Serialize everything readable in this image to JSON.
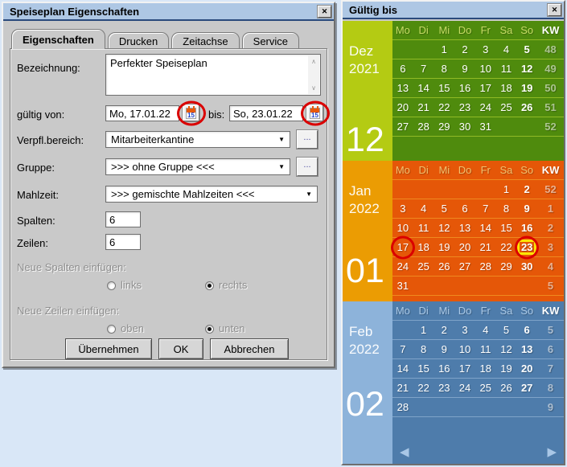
{
  "colors": {
    "page_background": "#d9e7f7",
    "titlebar": "#aec7e4",
    "dialog_face": "#c9c9c9",
    "annotation_red": "#da0000",
    "selection_yellow": "#fce603"
  },
  "icons": {
    "close": "✕",
    "dropdown_arrow": "▼",
    "dots": "...",
    "scroll_up": "∧",
    "scroll_down": "∨",
    "calendar_day_number": "15"
  },
  "dialog": {
    "title": "Speiseplan Eigenschaften",
    "tabs": [
      {
        "label": "Eigenschaften",
        "active": true
      },
      {
        "label": "Drucken",
        "active": false
      },
      {
        "label": "Zeitachse",
        "active": false
      },
      {
        "label": "Service",
        "active": false
      }
    ],
    "fields": {
      "bezeichnung_label": "Bezeichnung:",
      "bezeichnung_value": "Perfekter Speiseplan",
      "gueltig_von_label": "gültig von:",
      "gueltig_von_value": "Mo, 17.01.22",
      "bis_label": "bis:",
      "bis_value": "So, 23.01.22",
      "verpfl_label": "Verpfl.bereich:",
      "verpfl_value": "Mitarbeiterkantine",
      "gruppe_label": "Gruppe:",
      "gruppe_value": ">>> ohne Gruppe <<<",
      "mahlzeit_label": "Mahlzeit:",
      "mahlzeit_value": ">>> gemischte Mahlzeiten <<<",
      "spalten_label": "Spalten:",
      "spalten_value": "6",
      "zeilen_label": "Zeilen:",
      "zeilen_value": "6"
    },
    "radio_groups": {
      "spalten": {
        "label": "Neue Spalten einfügen:",
        "options": [
          {
            "label": "links",
            "selected": false
          },
          {
            "label": "rechts",
            "selected": true
          }
        ]
      },
      "zeilen": {
        "label": "Neue Zeilen einfügen:",
        "options": [
          {
            "label": "oben",
            "selected": false
          },
          {
            "label": "unten",
            "selected": true
          }
        ]
      }
    },
    "buttons": {
      "uebernehmen": "Übernehmen",
      "ok": "OK",
      "abbrechen": "Abbrechen"
    }
  },
  "calendar_window": {
    "title": "Gültig bis",
    "day_headers": [
      "Mo",
      "Di",
      "Mi",
      "Do",
      "Fr",
      "Sa",
      "So",
      "KW"
    ],
    "nav_prev": "◀",
    "nav_next": "▶",
    "months": [
      {
        "key": "dez",
        "name": "Dez",
        "year": "2021",
        "big": "12",
        "sidebar_color": "#b4cb13",
        "main_color": "#4f8b0d",
        "separator_color": "#90ba25",
        "header_color": "#c6db65",
        "weeks": [
          {
            "days": [
              "",
              "",
              "1",
              "2",
              "3",
              "4",
              "5"
            ],
            "kw": "48"
          },
          {
            "days": [
              "6",
              "7",
              "8",
              "9",
              "10",
              "11",
              "12"
            ],
            "kw": "49"
          },
          {
            "days": [
              "13",
              "14",
              "15",
              "16",
              "17",
              "18",
              "19"
            ],
            "kw": "50"
          },
          {
            "days": [
              "20",
              "21",
              "22",
              "23",
              "24",
              "25",
              "26"
            ],
            "kw": "51"
          },
          {
            "days": [
              "27",
              "28",
              "29",
              "30",
              "31",
              "",
              ""
            ],
            "kw": "52"
          }
        ]
      },
      {
        "key": "jan",
        "name": "Jan",
        "year": "2022",
        "big": "01",
        "sidebar_color": "#eb9c03",
        "main_color": "#e55708",
        "separator_color": "#ef8a1f",
        "header_color": "#f3c06d",
        "circled": [
          "17",
          "23"
        ],
        "selected": "23",
        "weeks": [
          {
            "days": [
              "",
              "",
              "",
              "",
              "",
              "1",
              "2"
            ],
            "kw": "52"
          },
          {
            "days": [
              "3",
              "4",
              "5",
              "6",
              "7",
              "8",
              "9"
            ],
            "kw": "1"
          },
          {
            "days": [
              "10",
              "11",
              "12",
              "13",
              "14",
              "15",
              "16"
            ],
            "kw": "2"
          },
          {
            "days": [
              "17",
              "18",
              "19",
              "20",
              "21",
              "22",
              "23"
            ],
            "kw": "3"
          },
          {
            "days": [
              "24",
              "25",
              "26",
              "27",
              "28",
              "29",
              "30"
            ],
            "kw": "4"
          },
          {
            "days": [
              "31",
              "",
              "",
              "",
              "",
              "",
              ""
            ],
            "kw": "5"
          }
        ]
      },
      {
        "key": "feb",
        "name": "Feb",
        "year": "2022",
        "big": "02",
        "sidebar_color": "#8db3da",
        "main_color": "#4e7cab",
        "separator_color": "#7fa3c9",
        "header_color": "#aac9e7",
        "nav": true,
        "weeks": [
          {
            "days": [
              "",
              "1",
              "2",
              "3",
              "4",
              "5",
              "6"
            ],
            "kw": "5"
          },
          {
            "days": [
              "7",
              "8",
              "9",
              "10",
              "11",
              "12",
              "13"
            ],
            "kw": "6"
          },
          {
            "days": [
              "14",
              "15",
              "16",
              "17",
              "18",
              "19",
              "20"
            ],
            "kw": "7"
          },
          {
            "days": [
              "21",
              "22",
              "23",
              "24",
              "25",
              "26",
              "27"
            ],
            "kw": "8"
          },
          {
            "days": [
              "28",
              "",
              "",
              "",
              "",
              "",
              ""
            ],
            "kw": "9"
          }
        ]
      }
    ]
  }
}
